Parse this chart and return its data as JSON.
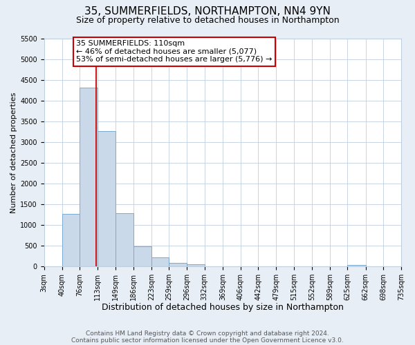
{
  "title": "35, SUMMERFIELDS, NORTHAMPTON, NN4 9YN",
  "subtitle": "Size of property relative to detached houses in Northampton",
  "xlabel": "Distribution of detached houses by size in Northampton",
  "ylabel": "Number of detached properties",
  "footer_line1": "Contains HM Land Registry data © Crown copyright and database right 2024.",
  "footer_line2": "Contains public sector information licensed under the Open Government Licence v3.0.",
  "bin_edges": [
    3,
    40,
    76,
    113,
    149,
    186,
    223,
    259,
    296,
    332,
    369,
    406,
    442,
    479,
    515,
    552,
    589,
    625,
    662,
    698,
    735
  ],
  "bin_labels": [
    "3sqm",
    "40sqm",
    "76sqm",
    "113sqm",
    "149sqm",
    "186sqm",
    "223sqm",
    "259sqm",
    "296sqm",
    "332sqm",
    "369sqm",
    "406sqm",
    "442sqm",
    "479sqm",
    "515sqm",
    "552sqm",
    "589sqm",
    "625sqm",
    "662sqm",
    "698sqm",
    "735sqm"
  ],
  "bar_heights": [
    0,
    1270,
    4320,
    3280,
    1280,
    480,
    220,
    90,
    50,
    0,
    0,
    0,
    0,
    0,
    0,
    0,
    0,
    30,
    0,
    0
  ],
  "bar_color": "#c9d9ea",
  "bar_edgecolor": "#7aaacf",
  "bar_linewidth": 0.7,
  "vline_x": 110,
  "vline_color": "#cc0000",
  "vline_linewidth": 1.3,
  "annotation_title": "35 SUMMERFIELDS: 110sqm",
  "annotation_line1": "← 46% of detached houses are smaller (5,077)",
  "annotation_line2": "53% of semi-detached houses are larger (5,776) →",
  "ylim_max": 5500,
  "yticks": [
    0,
    500,
    1000,
    1500,
    2000,
    2500,
    3000,
    3500,
    4000,
    4500,
    5000,
    5500
  ],
  "bg_color": "#e8eef5",
  "plot_bg_color": "#ffffff",
  "grid_color": "#c0cfe0",
  "title_fontsize": 11,
  "subtitle_fontsize": 9,
  "xlabel_fontsize": 9,
  "ylabel_fontsize": 8,
  "tick_fontsize": 7,
  "footer_fontsize": 6.5,
  "ann_fontsize": 8
}
